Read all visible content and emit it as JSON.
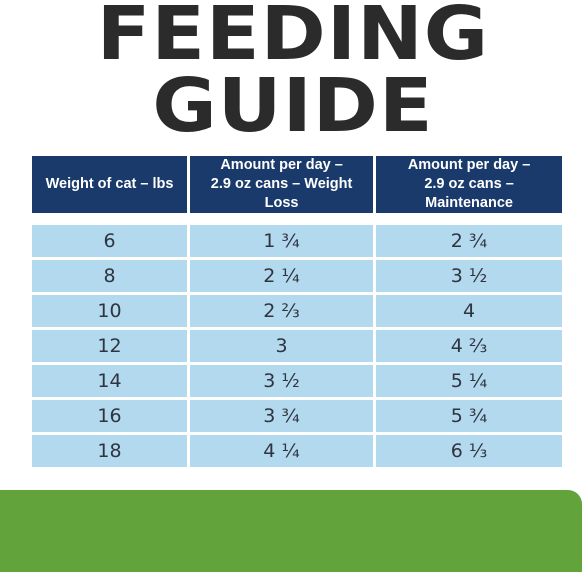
{
  "title": {
    "line1": "FEEDING",
    "line2": "GUIDE"
  },
  "table": {
    "headers": [
      {
        "line1": "Weight of cat – lbs",
        "line2": ""
      },
      {
        "line1": "Amount per day –",
        "line2": "2.9 oz cans – Weight Loss"
      },
      {
        "line1": "Amount per day –",
        "line2": "2.9 oz cans – Maintenance"
      }
    ],
    "rows": [
      [
        "6",
        "1 ¾",
        "2 ¾"
      ],
      [
        "8",
        "2 ¼",
        "3 ½"
      ],
      [
        "10",
        "2 ⅔",
        "4"
      ],
      [
        "12",
        "3",
        "4 ⅔"
      ],
      [
        "14",
        "3 ½",
        "5 ¼"
      ],
      [
        "16",
        "3 ¾",
        "5 ¾"
      ],
      [
        "18",
        "4 ¼",
        "6 ⅓"
      ]
    ]
  },
  "colors": {
    "header_bg": "#1a3a6b",
    "cell_bg": "#b3d9ee",
    "title_text": "#2b2b2b",
    "band": "#63a33b"
  }
}
